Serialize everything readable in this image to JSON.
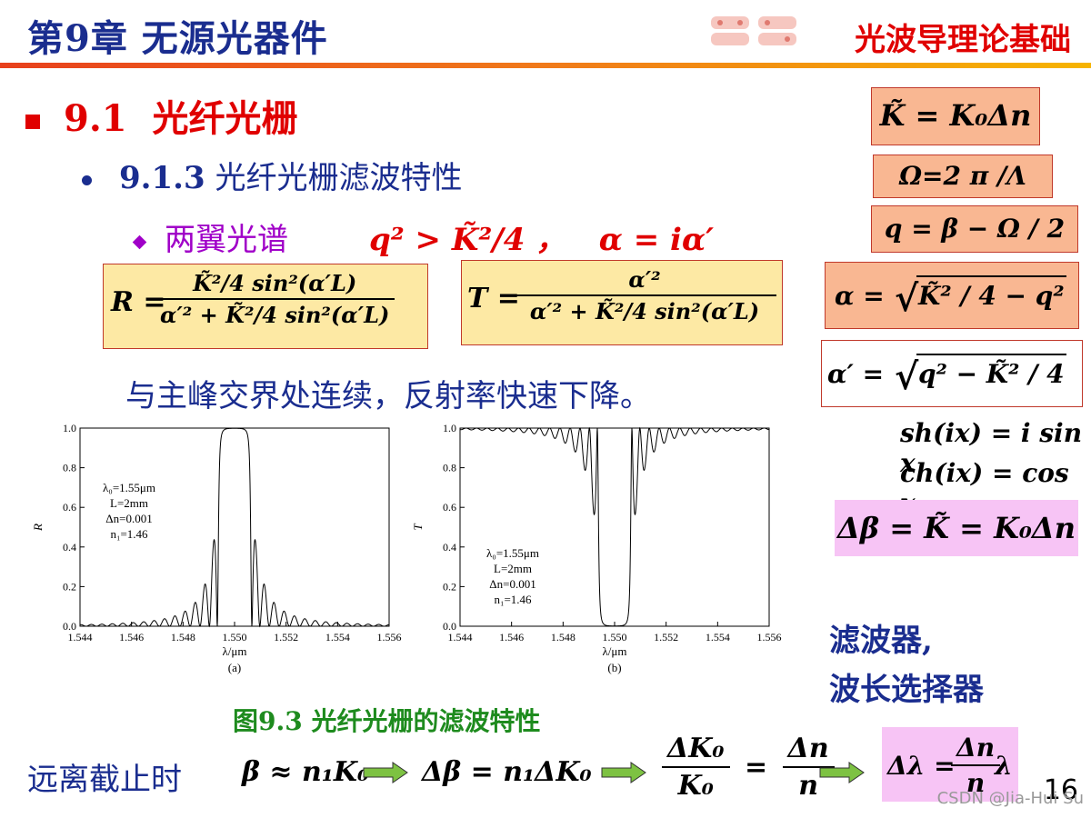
{
  "header": {
    "chapter_title": "第9章 无源光器件",
    "course_title": "光波导理论基础"
  },
  "section": {
    "number": "9.1",
    "title": "光纤光栅"
  },
  "subsection": {
    "number": "9.1.3",
    "title": "光纤光栅滤波特性"
  },
  "bullet": {
    "label": "两翼光谱",
    "condition": "q² > K̃²/4 ，",
    "alpha_def": "α = iα′"
  },
  "equations": {
    "R_lhs": "R =",
    "R_num": "K̃²/4 sin²(α′L)",
    "R_den": "α′² + K̃²/4 sin²(α′L)",
    "T_lhs": "T =",
    "T_num": "α′²",
    "T_den": "α′² + K̃²/4 sin²(α′L)",
    "K_def": "K̃ = K₀Δn",
    "Omega_def": "Ω=2 π /Λ",
    "q_def": "q = β − Ω / 2",
    "alpha_sqrt_lhs": "α =",
    "alpha_sqrt_body": "K̃² / 4 − q²",
    "alphap_sqrt_lhs": "α′ =",
    "alphap_sqrt_body": "q² − K̃² / 4",
    "sh": "sh(ix) = i sin x",
    "ch": "ch(ix) = cos x",
    "delta_beta": "Δβ = K̃ = K₀Δn"
  },
  "note": "与主峰交界处连续，反射率快速下降。",
  "figure_caption": "图9.3  光纤光栅的滤波特性",
  "far_cutoff": {
    "label": "远离截止时",
    "eq1": "β ≈ n₁K₀",
    "eq2": "Δβ = n₁ΔK₀",
    "eq3_num_l": "ΔK₀",
    "eq3_den_l": "K₀",
    "eq3_eq": "=",
    "eq3_num_r": "Δn",
    "eq3_den_r": "n",
    "eq4_lhs": "Δλ =",
    "eq4_num": "Δn",
    "eq4_den": "n",
    "eq4_rhs": "λ"
  },
  "filter_note": {
    "line1": "滤波器,",
    "line2": "波长选择器"
  },
  "page_number": "16",
  "watermark": "CSDN @Jia-Hui Su",
  "colors": {
    "accent_blue": "#1a2d8f",
    "red": "#e00000",
    "purple": "#a000c8",
    "green": "#1e8b1e"
  },
  "chart_data": [
    {
      "type": "line",
      "panel_label": "(a)",
      "xlabel": "λ/μm",
      "ylabel": "R",
      "xlim": [
        1.544,
        1.556
      ],
      "ylim": [
        0.0,
        1.0
      ],
      "xticks": [
        "1.544",
        "1.546",
        "1.548",
        "1.550",
        "1.552",
        "1.554",
        "1.556"
      ],
      "yticks": [
        "0.0",
        "0.2",
        "0.4",
        "0.6",
        "0.8",
        "1.0"
      ],
      "annotations": [
        "λ₀=1.55μm",
        "L=2mm",
        "Δn=0.001",
        "n₁=1.46"
      ],
      "series": [
        {
          "values": "reflectance spectrum: flat-top ≈1.0 between 1.5490 and 1.5510 μm, side lobes peaking ≈0.44, 0.21, 0.12, 0.07 decaying outward"
        }
      ]
    },
    {
      "type": "line",
      "panel_label": "(b)",
      "xlabel": "λ/μm",
      "ylabel": "T",
      "xlim": [
        1.544,
        1.556
      ],
      "ylim": [
        0.0,
        1.0
      ],
      "xticks": [
        "1.544",
        "1.546",
        "1.548",
        "1.550",
        "1.552",
        "1.554",
        "1.556"
      ],
      "yticks": [
        "0.0",
        "0.2",
        "0.4",
        "0.6",
        "0.8",
        "1.0"
      ],
      "annotations": [
        "λ₀=1.55μm",
        "L=2mm",
        "Δn=0.001",
        "n₁=1.46"
      ],
      "series": [
        {
          "values": "transmittance spectrum: ≈0 between 1.5490 and 1.5510 μm, side dips reaching ≈0.56, 0.79, 0.88, 0.93 outward, ≈1.0 far from center"
        }
      ]
    }
  ]
}
